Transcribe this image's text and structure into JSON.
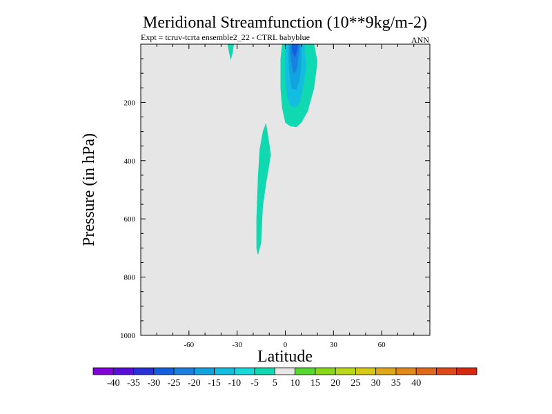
{
  "chart_data": {
    "type": "heatmap",
    "title": "Meridional Streamfunction (10**9kg/m-2)",
    "subtitle": "Expt = tcruv-tcrta  ensemble2_22 - CTRL babyblue",
    "season": "ANN",
    "xlabel": "Latitude",
    "ylabel": "Pressure (in hPa)",
    "xlim": [
      -90,
      90
    ],
    "ylim": [
      1000,
      0
    ],
    "x_ticks": [
      -60,
      -30,
      0,
      30,
      60
    ],
    "y_ticks": [
      200,
      400,
      600,
      800,
      1000
    ],
    "background_color": "#e6e6e6",
    "colorbar": {
      "labels": [
        "-40",
        "-35",
        "-30",
        "-25",
        "-20",
        "-15",
        "-10",
        "-5",
        "5",
        "10",
        "15",
        "20",
        "25",
        "30",
        "35",
        "40"
      ],
      "colors": [
        "#8400d8",
        "#5a0cd8",
        "#2a30d8",
        "#1060e0",
        "#1a80e0",
        "#11a2e0",
        "#12bde0",
        "#18d8d8",
        "#10d8b0",
        "#e6e6e6",
        "#55d830",
        "#88d81a",
        "#b8d818",
        "#d8c818",
        "#e0a818",
        "#e08818",
        "#e06818",
        "#e04818",
        "#d82810"
      ]
    },
    "regions": [
      {
        "name": "negative-cell-nh",
        "level": -10,
        "color": "#10d8b0",
        "polygon": [
          [
            -2,
            0
          ],
          [
            18,
            0
          ],
          [
            20,
            60
          ],
          [
            18,
            150
          ],
          [
            14,
            230
          ],
          [
            10,
            270
          ],
          [
            7,
            285
          ],
          [
            3,
            282
          ],
          [
            0,
            270
          ],
          [
            -2,
            220
          ],
          [
            -3,
            150
          ],
          [
            -3,
            50
          ]
        ]
      },
      {
        "name": "negative-cell-nh",
        "level": -15,
        "color": "#12bde0",
        "polygon": [
          [
            0,
            0
          ],
          [
            12,
            0
          ],
          [
            13,
            80
          ],
          [
            11,
            150
          ],
          [
            9,
            200
          ],
          [
            6,
            218
          ],
          [
            3,
            210
          ],
          [
            1,
            180
          ],
          [
            0,
            120
          ]
        ]
      },
      {
        "name": "negative-cell-nh",
        "level": -20,
        "color": "#11a2e0",
        "polygon": [
          [
            2,
            0
          ],
          [
            10,
            0
          ],
          [
            10,
            60
          ],
          [
            9,
            120
          ],
          [
            7,
            155
          ],
          [
            4,
            155
          ],
          [
            3,
            120
          ],
          [
            2,
            60
          ]
        ]
      },
      {
        "name": "negative-cell-nh",
        "level": -25,
        "color": "#1a80e0",
        "polygon": [
          [
            3,
            0
          ],
          [
            9,
            0
          ],
          [
            8,
            50
          ],
          [
            7,
            90
          ],
          [
            5,
            100
          ],
          [
            4,
            70
          ],
          [
            3,
            30
          ]
        ]
      },
      {
        "name": "negative-cell-nh",
        "level": -30,
        "color": "#1060e0",
        "polygon": [
          [
            4,
            0
          ],
          [
            8,
            0
          ],
          [
            7,
            30
          ],
          [
            6,
            45
          ],
          [
            5,
            35
          ],
          [
            4,
            15
          ]
        ]
      },
      {
        "name": "tropical-plume",
        "level": -10,
        "color": "#10d8b0",
        "polygon": [
          [
            -12,
            270
          ],
          [
            -10,
            340
          ],
          [
            -9,
            380
          ],
          [
            -12,
            480
          ],
          [
            -14,
            560
          ],
          [
            -15,
            680
          ],
          [
            -17,
            725
          ],
          [
            -18,
            700
          ],
          [
            -18,
            600
          ],
          [
            -17,
            450
          ],
          [
            -16,
            360
          ],
          [
            -14,
            300
          ]
        ]
      },
      {
        "name": "south-spike",
        "level": -10,
        "color": "#10d8b0",
        "polygon": [
          [
            -36,
            0
          ],
          [
            -32,
            0
          ],
          [
            -33,
            35
          ],
          [
            -34,
            55
          ],
          [
            -35,
            30
          ]
        ]
      }
    ]
  }
}
